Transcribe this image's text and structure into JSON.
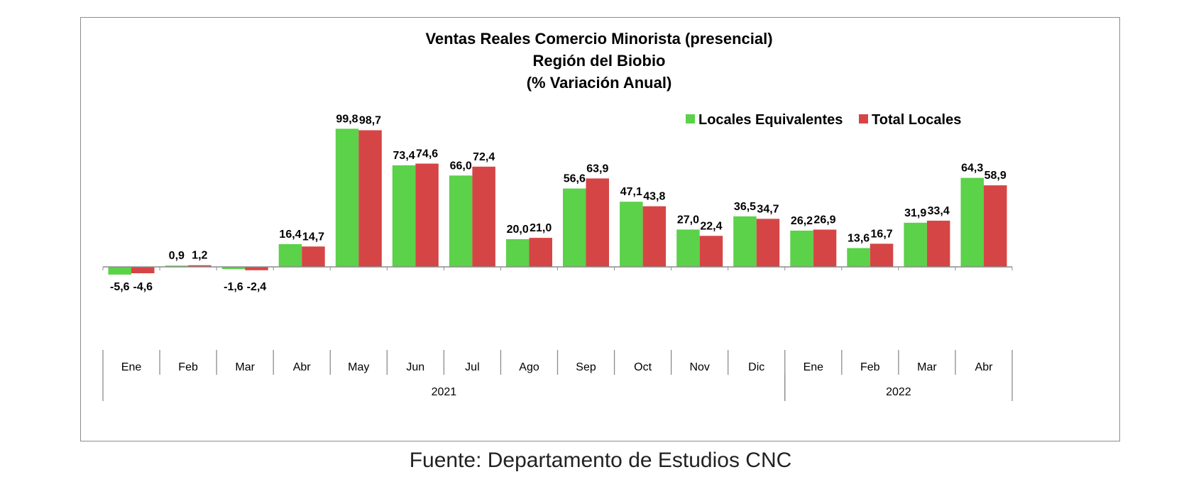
{
  "chart_data": {
    "type": "bar",
    "title_lines": [
      "Ventas Reales Comercio Minorista (presencial)",
      "Región del Biobio",
      "(% Variación Anual)"
    ],
    "categories": [
      "Ene",
      "Feb",
      "Mar",
      "Abr",
      "May",
      "Jun",
      "Jul",
      "Ago",
      "Sep",
      "Oct",
      "Nov",
      "Dic",
      "Ene",
      "Feb",
      "Mar",
      "Abr"
    ],
    "groups": [
      {
        "label": "2021",
        "start": 0,
        "end": 11
      },
      {
        "label": "2022",
        "start": 12,
        "end": 15
      }
    ],
    "series": [
      {
        "name": "Locales Equivalentes",
        "color": "#5cd14a",
        "values": [
          -5.6,
          0.9,
          -1.6,
          16.4,
          99.8,
          73.4,
          66.0,
          20.0,
          56.6,
          47.1,
          27.0,
          36.5,
          26.2,
          13.6,
          31.9,
          64.3
        ],
        "labels": [
          "-5,6",
          "0,9",
          "-1,6",
          "16,4",
          "99,8",
          "73,4",
          "66,0",
          "20,0",
          "56,6",
          "47,1",
          "27,0",
          "36,5",
          "26,2",
          "13,6",
          "31,9",
          "64,3"
        ]
      },
      {
        "name": "Total Locales",
        "color": "#d64545",
        "values": [
          -4.6,
          1.2,
          -2.4,
          14.7,
          98.7,
          74.6,
          72.4,
          21.0,
          63.9,
          43.8,
          22.4,
          34.7,
          26.9,
          16.7,
          33.4,
          58.9
        ],
        "labels": [
          "-4,6",
          "1,2",
          "-2,4",
          "14,7",
          "98,7",
          "74,6",
          "72,4",
          "21,0",
          "63,9",
          "43,8",
          "22,4",
          "34,7",
          "26,9",
          "16,7",
          "33,4",
          "58,9"
        ]
      }
    ],
    "legend_position": "top-right",
    "grid": false
  },
  "source_text": "Fuente: Departamento de Estudios CNC"
}
